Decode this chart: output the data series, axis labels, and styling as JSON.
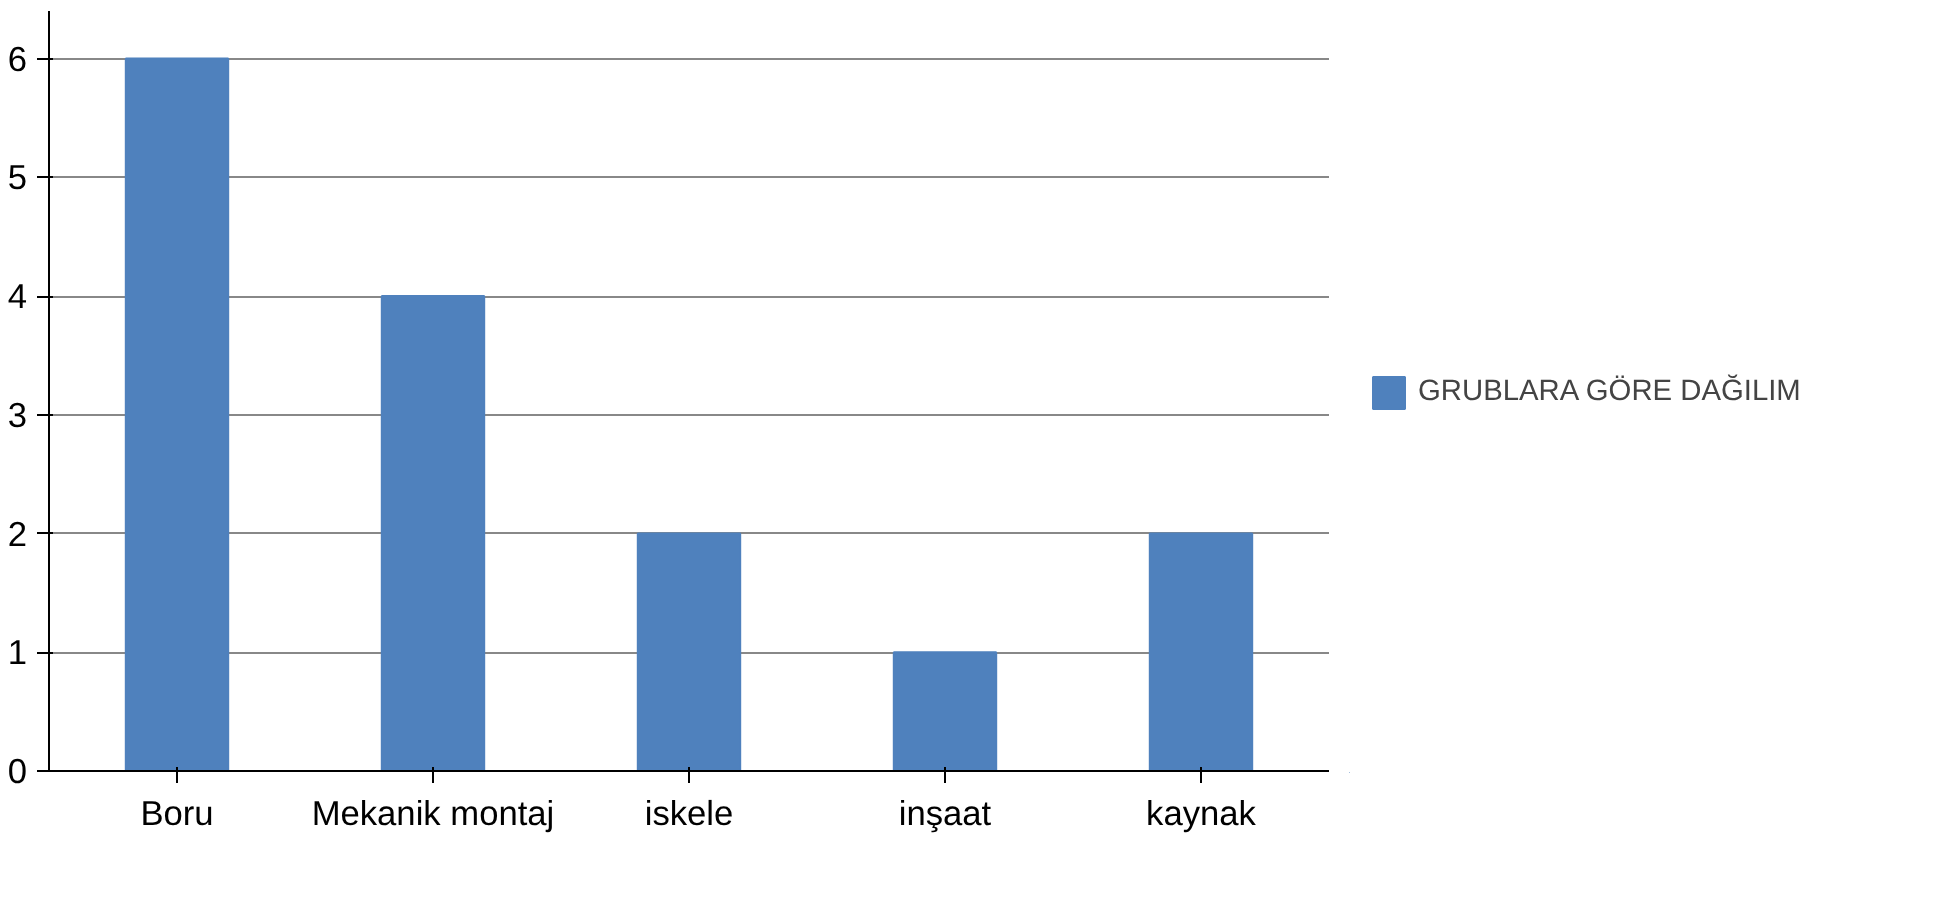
{
  "chart_data": {
    "type": "bar",
    "categories": [
      "Boru",
      "Mekanik montaj",
      "iskele",
      "inşaat",
      "kaynak"
    ],
    "series": [
      {
        "name": "GRUBLARA GÖRE DAĞILIM",
        "color": "#4f81bd",
        "values": [
          6,
          4,
          2,
          1,
          2
        ]
      }
    ],
    "ylim": [
      0,
      6.4
    ],
    "yticks": [
      0,
      1,
      2,
      3,
      4,
      5,
      6
    ],
    "grid": "y",
    "legend": "right"
  }
}
